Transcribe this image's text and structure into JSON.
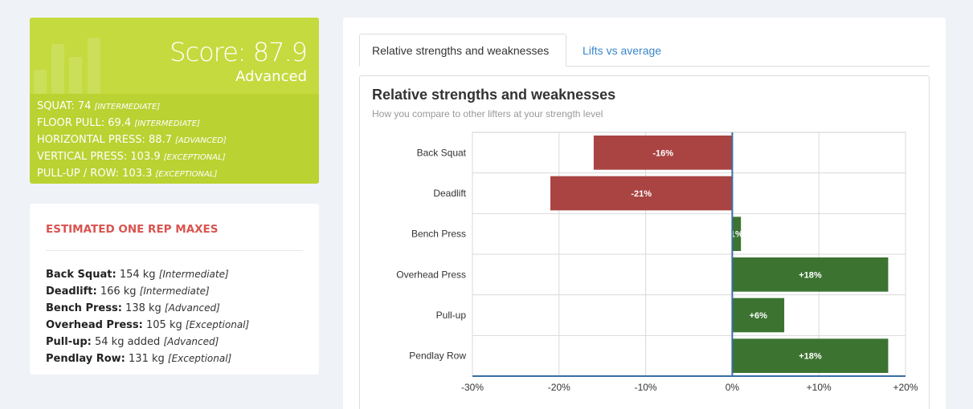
{
  "score_card": {
    "score_text": "Score: 87.9",
    "level": "Advanced",
    "lifts": [
      {
        "label": "SQUAT: 74",
        "level": "[INTERMEDIATE]"
      },
      {
        "label": "FLOOR PULL: 69.4",
        "level": "[INTERMEDIATE]"
      },
      {
        "label": "HORIZONTAL PRESS: 88.7",
        "level": "[ADVANCED]"
      },
      {
        "label": "VERTICAL PRESS: 103.9",
        "level": "[EXCEPTIONAL]"
      },
      {
        "label": "PULL-UP / ROW: 103.3",
        "level": "[EXCEPTIONAL]"
      }
    ]
  },
  "one_rep_maxes": {
    "title": "ESTIMATED ONE REP MAXES",
    "rows": [
      {
        "name": "Back Squat:",
        "value": "154 kg",
        "level": "[Intermediate]"
      },
      {
        "name": "Deadlift:",
        "value": "166 kg",
        "level": "[Intermediate]"
      },
      {
        "name": "Bench Press:",
        "value": "138 kg",
        "level": "[Advanced]"
      },
      {
        "name": "Overhead Press:",
        "value": "105 kg",
        "level": "[Exceptional]"
      },
      {
        "name": "Pull-up:",
        "value": "54 kg added",
        "level": "[Advanced]"
      },
      {
        "name": "Pendlay Row:",
        "value": "131 kg",
        "level": "[Exceptional]"
      }
    ]
  },
  "tabs": {
    "active": "Relative strengths and weaknesses",
    "inactive": "Lifts vs average"
  },
  "colors": {
    "negative": "#a94442",
    "positive": "#3c7331",
    "zero_line": "#3a6ea5",
    "score_bg": "#bad232"
  },
  "chart_data": {
    "type": "bar",
    "orientation": "horizontal",
    "title": "Relative strengths and weaknesses",
    "subtitle": "How you compare to other lifters at your strength level",
    "categories": [
      "Back Squat",
      "Deadlift",
      "Bench Press",
      "Overhead Press",
      "Pull-up",
      "Pendlay Row"
    ],
    "values": [
      -16,
      -21,
      1,
      18,
      6,
      18
    ],
    "data_labels": [
      "-16%",
      "-21%",
      "1%",
      "+18%",
      "+6%",
      "+18%"
    ],
    "xlim": [
      -30,
      20
    ],
    "xticks": [
      -30,
      -20,
      -10,
      0,
      10,
      20
    ],
    "xtick_labels": [
      "-30%",
      "-20%",
      "-10%",
      "0%",
      "+10%",
      "+20%"
    ],
    "grid": true
  }
}
